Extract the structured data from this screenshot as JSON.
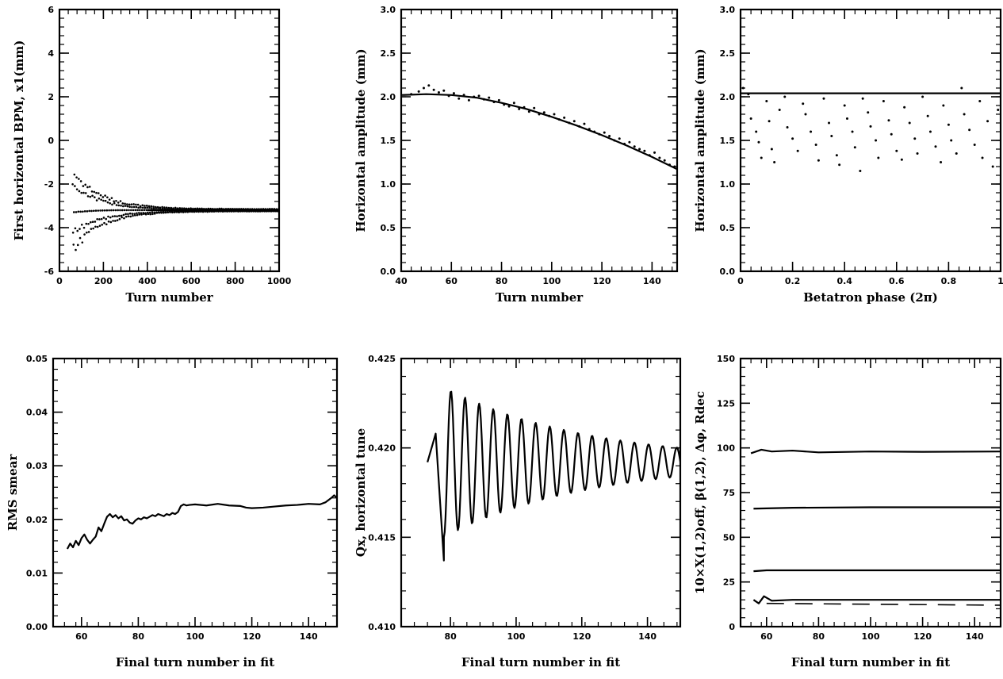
{
  "chart_data": [
    {
      "id": "p1",
      "type": "scatter",
      "xlabel": "Turn number",
      "ylabel": "First horizontal BPM, x1(mm)",
      "xlim": [
        0,
        1000
      ],
      "ylim": [
        -6,
        6
      ],
      "xticks": [
        "0",
        "200",
        "400",
        "600",
        "800",
        "1000"
      ],
      "yticks": [
        "-6",
        "-4",
        "-2",
        "0",
        "2",
        "4",
        "6"
      ],
      "series": [
        {
          "kind": "decaying-oscillation",
          "x_start": 60,
          "x_end": 1000,
          "center": -3.2,
          "envelope_start": 2.1,
          "decay_turns": 130,
          "late_baseline": [
            [
              400,
              -3.2
            ],
            [
              600,
              -3.22
            ],
            [
              800,
              -3.15
            ],
            [
              1000,
              -3.25
            ]
          ]
        }
      ]
    },
    {
      "id": "p2",
      "type": "line",
      "xlabel": "Turn number",
      "ylabel": "Horizontal amplitude (mm)",
      "xlim": [
        40,
        150
      ],
      "ylim": [
        0.0,
        3.0
      ],
      "xticks": [
        "40",
        "60",
        "80",
        "100",
        "120",
        "140"
      ],
      "yticks": [
        "0.0",
        "0.5",
        "1.0",
        "1.5",
        "2.0",
        "2.5",
        "3.0"
      ],
      "series": [
        {
          "kind": "fit-line",
          "points": [
            [
              40,
              2.02
            ],
            [
              50,
              2.03
            ],
            [
              60,
              2.02
            ],
            [
              70,
              1.99
            ],
            [
              80,
              1.93
            ],
            [
              90,
              1.86
            ],
            [
              100,
              1.77
            ],
            [
              110,
              1.67
            ],
            [
              120,
              1.56
            ],
            [
              130,
              1.44
            ],
            [
              140,
              1.31
            ],
            [
              150,
              1.17
            ]
          ]
        },
        {
          "kind": "scatter",
          "points": [
            [
              44,
              2.03
            ],
            [
              47,
              2.06
            ],
            [
              49,
              2.1
            ],
            [
              51,
              2.13
            ],
            [
              53,
              2.08
            ],
            [
              55,
              2.05
            ],
            [
              57,
              2.07
            ],
            [
              59,
              2.01
            ],
            [
              61,
              2.04
            ],
            [
              63,
              1.98
            ],
            [
              65,
              2.02
            ],
            [
              67,
              1.96
            ],
            [
              69,
              2.0
            ],
            [
              71,
              2.01
            ],
            [
              73,
              1.97
            ],
            [
              75,
              1.99
            ],
            [
              77,
              1.94
            ],
            [
              79,
              1.96
            ],
            [
              81,
              1.91
            ],
            [
              83,
              1.89
            ],
            [
              85,
              1.93
            ],
            [
              87,
              1.86
            ],
            [
              89,
              1.88
            ],
            [
              91,
              1.83
            ],
            [
              93,
              1.87
            ],
            [
              95,
              1.8
            ],
            [
              97,
              1.82
            ],
            [
              99,
              1.78
            ],
            [
              101,
              1.8
            ],
            [
              103,
              1.74
            ],
            [
              105,
              1.76
            ],
            [
              107,
              1.7
            ],
            [
              109,
              1.72
            ],
            [
              111,
              1.66
            ],
            [
              113,
              1.69
            ],
            [
              115,
              1.63
            ],
            [
              117,
              1.6
            ],
            [
              119,
              1.57
            ],
            [
              121,
              1.59
            ],
            [
              123,
              1.55
            ],
            [
              125,
              1.5
            ],
            [
              127,
              1.52
            ],
            [
              129,
              1.46
            ],
            [
              131,
              1.48
            ],
            [
              133,
              1.43
            ],
            [
              135,
              1.4
            ],
            [
              137,
              1.38
            ],
            [
              139,
              1.33
            ],
            [
              141,
              1.36
            ],
            [
              143,
              1.3
            ],
            [
              145,
              1.27
            ],
            [
              147,
              1.22
            ],
            [
              149,
              1.2
            ]
          ]
        }
      ]
    },
    {
      "id": "p3",
      "type": "scatter",
      "xlabel": "Betatron phase (2π)",
      "ylabel": "Horizontal amplitude (mm)",
      "xlim": [
        0,
        1
      ],
      "ylim": [
        0.0,
        3.0
      ],
      "xticks": [
        "0",
        "0.2",
        "0.4",
        "0.6",
        "0.8",
        "1"
      ],
      "yticks": [
        "0.0",
        "0.5",
        "1.0",
        "1.5",
        "2.0",
        "2.5",
        "3.0"
      ],
      "series": [
        {
          "kind": "hline",
          "y": 2.04
        },
        {
          "kind": "scatter",
          "points": [
            [
              0.01,
              2.1
            ],
            [
              0.03,
              2.03
            ],
            [
              0.04,
              1.75
            ],
            [
              0.06,
              1.6
            ],
            [
              0.07,
              1.48
            ],
            [
              0.08,
              1.3
            ],
            [
              0.1,
              1.95
            ],
            [
              0.11,
              1.72
            ],
            [
              0.12,
              1.4
            ],
            [
              0.13,
              1.25
            ],
            [
              0.15,
              1.85
            ],
            [
              0.17,
              2.0
            ],
            [
              0.18,
              1.65
            ],
            [
              0.2,
              1.52
            ],
            [
              0.22,
              1.38
            ],
            [
              0.24,
              1.92
            ],
            [
              0.25,
              1.8
            ],
            [
              0.27,
              1.6
            ],
            [
              0.29,
              1.45
            ],
            [
              0.3,
              1.27
            ],
            [
              0.32,
              1.98
            ],
            [
              0.34,
              1.7
            ],
            [
              0.35,
              1.55
            ],
            [
              0.37,
              1.33
            ],
            [
              0.38,
              1.22
            ],
            [
              0.4,
              1.9
            ],
            [
              0.41,
              1.75
            ],
            [
              0.43,
              1.6
            ],
            [
              0.44,
              1.42
            ],
            [
              0.46,
              1.15
            ],
            [
              0.47,
              1.98
            ],
            [
              0.49,
              1.82
            ],
            [
              0.5,
              1.66
            ],
            [
              0.52,
              1.5
            ],
            [
              0.53,
              1.3
            ],
            [
              0.55,
              1.95
            ],
            [
              0.57,
              1.73
            ],
            [
              0.58,
              1.57
            ],
            [
              0.6,
              1.38
            ],
            [
              0.62,
              1.28
            ],
            [
              0.63,
              1.88
            ],
            [
              0.65,
              1.7
            ],
            [
              0.67,
              1.52
            ],
            [
              0.68,
              1.35
            ],
            [
              0.7,
              2.0
            ],
            [
              0.72,
              1.78
            ],
            [
              0.73,
              1.6
            ],
            [
              0.75,
              1.43
            ],
            [
              0.77,
              1.25
            ],
            [
              0.78,
              1.9
            ],
            [
              0.8,
              1.68
            ],
            [
              0.81,
              1.5
            ],
            [
              0.83,
              1.35
            ],
            [
              0.85,
              2.1
            ],
            [
              0.86,
              1.8
            ],
            [
              0.88,
              1.62
            ],
            [
              0.9,
              1.45
            ],
            [
              0.92,
              1.95
            ],
            [
              0.93,
              1.3
            ],
            [
              0.95,
              1.72
            ],
            [
              0.97,
              1.2
            ],
            [
              0.99,
              1.85
            ]
          ]
        }
      ]
    },
    {
      "id": "p4",
      "type": "line",
      "xlabel": "Final turn number in fit",
      "ylabel": "RMS smear",
      "xlim": [
        50,
        150
      ],
      "ylim": [
        0.0,
        0.05
      ],
      "xticks": [
        "60",
        "80",
        "100",
        "120",
        "140"
      ],
      "yticks": [
        "0.00",
        "0.01",
        "0.02",
        "0.03",
        "0.04",
        "0.05"
      ],
      "series": [
        {
          "kind": "line",
          "points": [
            [
              55,
              0.0145
            ],
            [
              56,
              0.0155
            ],
            [
              57,
              0.0148
            ],
            [
              58,
              0.016
            ],
            [
              59,
              0.0152
            ],
            [
              60,
              0.0165
            ],
            [
              61,
              0.0172
            ],
            [
              62,
              0.0162
            ],
            [
              63,
              0.0155
            ],
            [
              64,
              0.0162
            ],
            [
              65,
              0.0168
            ],
            [
              66,
              0.0185
            ],
            [
              67,
              0.0178
            ],
            [
              68,
              0.0192
            ],
            [
              69,
              0.0205
            ],
            [
              70,
              0.021
            ],
            [
              71,
              0.0204
            ],
            [
              72,
              0.0208
            ],
            [
              73,
              0.0202
            ],
            [
              74,
              0.0206
            ],
            [
              75,
              0.0198
            ],
            [
              76,
              0.02
            ],
            [
              77,
              0.0194
            ],
            [
              78,
              0.0192
            ],
            [
              79,
              0.0198
            ],
            [
              80,
              0.0202
            ],
            [
              81,
              0.02
            ],
            [
              82,
              0.0204
            ],
            [
              83,
              0.0202
            ],
            [
              84,
              0.0205
            ],
            [
              85,
              0.0208
            ],
            [
              86,
              0.0206
            ],
            [
              87,
              0.021
            ],
            [
              88,
              0.0208
            ],
            [
              89,
              0.0206
            ],
            [
              90,
              0.021
            ],
            [
              91,
              0.0208
            ],
            [
              92,
              0.0212
            ],
            [
              93,
              0.021
            ],
            [
              94,
              0.0214
            ],
            [
              95,
              0.0225
            ],
            [
              96,
              0.0228
            ],
            [
              97,
              0.0226
            ],
            [
              98,
              0.0227
            ],
            [
              100,
              0.0228
            ],
            [
              104,
              0.0226
            ],
            [
              108,
              0.0229
            ],
            [
              112,
              0.0226
            ],
            [
              116,
              0.0225
            ],
            [
              118,
              0.0222
            ],
            [
              120,
              0.0221
            ],
            [
              124,
              0.0222
            ],
            [
              128,
              0.0224
            ],
            [
              132,
              0.0226
            ],
            [
              136,
              0.0227
            ],
            [
              140,
              0.0229
            ],
            [
              144,
              0.0228
            ],
            [
              146,
              0.0232
            ],
            [
              148,
              0.024
            ],
            [
              149,
              0.0245
            ],
            [
              150,
              0.024
            ]
          ]
        }
      ]
    },
    {
      "id": "p5",
      "type": "line",
      "xlabel": "Final turn number in fit",
      "ylabel": "Qx,   horizontal tune",
      "xlim": [
        65,
        150
      ],
      "ylim": [
        0.41,
        0.425
      ],
      "xticks": [
        "80",
        "100",
        "120",
        "140"
      ],
      "yticks": [
        "0.410",
        "0.415",
        "0.420",
        "0.425"
      ],
      "series": [
        {
          "kind": "damped-oscillation",
          "x_start": 73,
          "x_end": 150,
          "center": 0.4192,
          "amp_start": 0.0042,
          "amp_end": 0.0008,
          "period": 4.3,
          "initial_peak": [
            75.5,
            0.4208
          ],
          "initial_trough": [
            78,
            0.4137
          ]
        }
      ]
    },
    {
      "id": "p6",
      "type": "line",
      "xlabel": "Final turn number in fit",
      "ylabel": "10×X(1,2)off, β(1,2), Δφ, Rdec",
      "xlim": [
        50,
        150
      ],
      "ylim": [
        0,
        150
      ],
      "xticks": [
        "60",
        "80",
        "100",
        "120",
        "140"
      ],
      "yticks": [
        "0",
        "25",
        "50",
        "75",
        "100",
        "125",
        "150"
      ],
      "series": [
        {
          "kind": "line",
          "points": [
            [
              54,
              97
            ],
            [
              58,
              99
            ],
            [
              62,
              98
            ],
            [
              70,
              98.5
            ],
            [
              80,
              97.5
            ],
            [
              100,
              98
            ],
            [
              120,
              97.8
            ],
            [
              150,
              98
            ]
          ]
        },
        {
          "kind": "line",
          "points": [
            [
              55,
              66
            ],
            [
              70,
              66.5
            ],
            [
              100,
              66.8
            ],
            [
              150,
              66.8
            ]
          ]
        },
        {
          "kind": "line",
          "points": [
            [
              55,
              31
            ],
            [
              60,
              31.5
            ],
            [
              100,
              31.5
            ],
            [
              150,
              31.5
            ]
          ]
        },
        {
          "kind": "line",
          "points": [
            [
              55,
              15
            ],
            [
              57,
              13
            ],
            [
              59,
              17
            ],
            [
              62,
              14.5
            ],
            [
              70,
              15
            ],
            [
              100,
              15
            ],
            [
              150,
              15
            ]
          ]
        },
        {
          "kind": "dashed",
          "points": [
            [
              60,
              13
            ],
            [
              150,
              12
            ]
          ]
        }
      ]
    }
  ]
}
